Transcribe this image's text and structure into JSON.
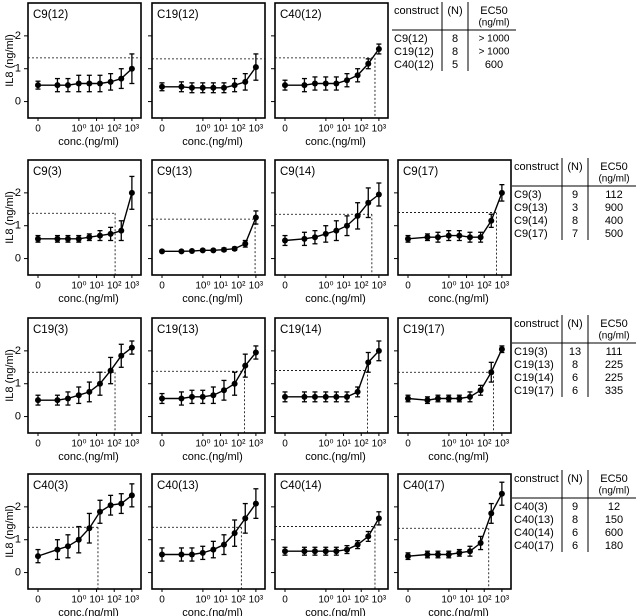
{
  "axes": {
    "ylabel": "IL8 (ng/ml)",
    "xlabel": "conc.(ng/ml)",
    "x": [
      0,
      0.061,
      0.24,
      0.98,
      3.9,
      15.6,
      62.5,
      250,
      1000
    ],
    "xlim": [
      0.03,
      1500
    ],
    "log_x": true,
    "xticks": [
      0,
      {
        "value": 1,
        "label": "10⁰"
      },
      {
        "value": 10,
        "label": "10¹"
      },
      {
        "value": 100,
        "label": "10²"
      },
      {
        "value": 1000,
        "label": "10³"
      }
    ],
    "ylim": [
      -0.5,
      3
    ],
    "yticks": [
      0,
      1,
      2
    ],
    "color": "#000000"
  },
  "chart_data": [
    {
      "type": "line",
      "title": "C9(12)",
      "values": [
        0.5,
        0.5,
        0.5,
        0.55,
        0.55,
        0.55,
        0.6,
        0.7,
        1.0
      ],
      "errors": [
        0.12,
        0.2,
        0.2,
        0.25,
        0.25,
        0.25,
        0.25,
        0.3,
        0.45
      ],
      "threshold": 1.33
    },
    {
      "type": "line",
      "title": "C19(12)",
      "values": [
        0.45,
        0.45,
        0.42,
        0.42,
        0.42,
        0.42,
        0.5,
        0.6,
        1.05
      ],
      "errors": [
        0.12,
        0.15,
        0.15,
        0.15,
        0.15,
        0.15,
        0.2,
        0.25,
        0.4
      ],
      "threshold": 1.3
    },
    {
      "type": "line",
      "title": "C40(12)",
      "values": [
        0.5,
        0.5,
        0.55,
        0.55,
        0.55,
        0.65,
        0.8,
        1.15,
        1.6
      ],
      "errors": [
        0.15,
        0.2,
        0.2,
        0.2,
        0.2,
        0.2,
        0.2,
        0.15,
        0.15
      ],
      "threshold": 1.33
    },
    {
      "type": "line",
      "title": "C9(3)",
      "values": [
        0.6,
        0.6,
        0.6,
        0.6,
        0.65,
        0.7,
        0.75,
        0.85,
        2.0
      ],
      "errors": [
        0.1,
        0.1,
        0.1,
        0.1,
        0.1,
        0.15,
        0.2,
        0.3,
        0.5
      ],
      "threshold": 1.38
    },
    {
      "type": "line",
      "title": "C9(13)",
      "values": [
        0.22,
        0.22,
        0.23,
        0.25,
        0.25,
        0.27,
        0.3,
        0.45,
        1.25
      ],
      "errors": [
        0.03,
        0.03,
        0.03,
        0.03,
        0.03,
        0.05,
        0.05,
        0.1,
        0.2
      ],
      "threshold": 1.2
    },
    {
      "type": "line",
      "title": "C9(14)",
      "values": [
        0.55,
        0.6,
        0.65,
        0.75,
        0.85,
        1.0,
        1.3,
        1.7,
        1.95
      ],
      "errors": [
        0.15,
        0.2,
        0.2,
        0.25,
        0.3,
        0.3,
        0.4,
        0.45,
        0.35
      ],
      "threshold": 1.35
    },
    {
      "type": "line",
      "title": "C9(17)",
      "values": [
        0.6,
        0.65,
        0.65,
        0.7,
        0.7,
        0.65,
        0.65,
        1.15,
        2.0
      ],
      "errors": [
        0.1,
        0.1,
        0.15,
        0.15,
        0.15,
        0.15,
        0.15,
        0.2,
        0.25
      ],
      "threshold": 1.4
    },
    {
      "type": "line",
      "title": "C19(3)",
      "values": [
        0.5,
        0.5,
        0.55,
        0.65,
        0.75,
        1.0,
        1.4,
        1.85,
        2.1
      ],
      "errors": [
        0.15,
        0.15,
        0.2,
        0.25,
        0.3,
        0.35,
        0.4,
        0.35,
        0.2
      ],
      "threshold": 1.35
    },
    {
      "type": "line",
      "title": "C19(13)",
      "values": [
        0.55,
        0.55,
        0.6,
        0.6,
        0.65,
        0.8,
        1.0,
        1.55,
        1.95
      ],
      "errors": [
        0.15,
        0.2,
        0.2,
        0.2,
        0.25,
        0.3,
        0.35,
        0.35,
        0.2
      ],
      "threshold": 1.38
    },
    {
      "type": "line",
      "title": "C19(14)",
      "values": [
        0.6,
        0.6,
        0.6,
        0.6,
        0.6,
        0.6,
        0.75,
        1.65,
        2.0
      ],
      "errors": [
        0.15,
        0.15,
        0.15,
        0.15,
        0.15,
        0.15,
        0.15,
        0.3,
        0.3
      ],
      "threshold": 1.4
    },
    {
      "type": "line",
      "title": "C19(17)",
      "values": [
        0.55,
        0.5,
        0.55,
        0.55,
        0.55,
        0.6,
        0.8,
        1.35,
        2.05
      ],
      "errors": [
        0.1,
        0.1,
        0.1,
        0.1,
        0.1,
        0.15,
        0.15,
        0.3,
        0.1
      ],
      "threshold": 1.35
    },
    {
      "type": "line",
      "title": "C40(3)",
      "values": [
        0.5,
        0.7,
        0.8,
        1.0,
        1.35,
        1.85,
        2.05,
        2.1,
        2.35
      ],
      "errors": [
        0.2,
        0.3,
        0.35,
        0.4,
        0.45,
        0.35,
        0.3,
        0.3,
        0.35
      ],
      "threshold": 1.38
    },
    {
      "type": "line",
      "title": "C40(13)",
      "values": [
        0.55,
        0.55,
        0.55,
        0.6,
        0.7,
        0.85,
        1.2,
        1.65,
        2.1
      ],
      "errors": [
        0.2,
        0.2,
        0.2,
        0.2,
        0.25,
        0.3,
        0.4,
        0.45,
        0.45
      ],
      "threshold": 1.38
    },
    {
      "type": "line",
      "title": "C40(14)",
      "values": [
        0.65,
        0.65,
        0.65,
        0.65,
        0.65,
        0.7,
        0.85,
        1.1,
        1.65
      ],
      "errors": [
        0.12,
        0.12,
        0.12,
        0.12,
        0.12,
        0.12,
        0.12,
        0.15,
        0.2
      ],
      "threshold": 1.4
    },
    {
      "type": "line",
      "title": "C40(17)",
      "values": [
        0.5,
        0.55,
        0.55,
        0.55,
        0.6,
        0.65,
        0.9,
        1.8,
        2.4
      ],
      "errors": [
        0.1,
        0.1,
        0.1,
        0.1,
        0.1,
        0.15,
        0.2,
        0.3,
        0.35
      ],
      "threshold": 1.35
    }
  ],
  "tables": [
    {
      "header": [
        "construct",
        "(N)",
        "EC50",
        "(ng/ml)"
      ],
      "rows": [
        [
          "C9(12)",
          8,
          "> 1000"
        ],
        [
          "C19(12)",
          8,
          "> 1000"
        ],
        [
          "C40(12)",
          5,
          600
        ]
      ]
    },
    {
      "header": [
        "construct",
        "(N)",
        "EC50",
        "(ng/ml)"
      ],
      "rows": [
        [
          "C9(3)",
          9,
          112
        ],
        [
          "C9(13)",
          3,
          900
        ],
        [
          "C9(14)",
          8,
          400
        ],
        [
          "C9(17)",
          7,
          500
        ]
      ]
    },
    {
      "header": [
        "construct",
        "(N)",
        "EC50",
        "(ng/ml)"
      ],
      "rows": [
        [
          "C19(3)",
          13,
          111
        ],
        [
          "C19(13)",
          8,
          225
        ],
        [
          "C19(14)",
          6,
          225
        ],
        [
          "C19(17)",
          6,
          335
        ]
      ]
    },
    {
      "header": [
        "construct",
        "(N)",
        "EC50",
        "(ng/ml)"
      ],
      "rows": [
        [
          "C40(3)",
          9,
          12
        ],
        [
          "C40(13)",
          8,
          150
        ],
        [
          "C40(14)",
          6,
          600
        ],
        [
          "C40(17)",
          6,
          180
        ]
      ]
    }
  ]
}
